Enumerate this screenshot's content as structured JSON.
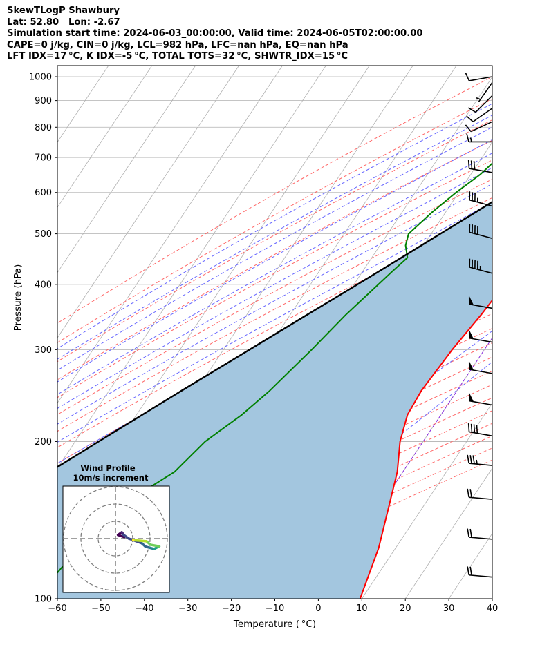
{
  "header": {
    "lines": [
      "SkewTLogP Shawbury",
      "Lat: 52.80   Lon: -2.67",
      "Simulation start time: 2024-06-03_00:00:00, Valid time: 2024-06-05T02:00:00.00",
      "CAPE=0 j/kg, CIN=0 j/kg, LCL=982 hPa, LFC=nan hPa, EQ=nan hPa",
      "LFT IDX=17 °C, K IDX=-5 °C, TOTAL TOTS=32 °C, SHWTR_IDX=15 °C"
    ]
  },
  "chart_data": {
    "type": "line",
    "chart_kind": "skew-T log-P diagram",
    "xlabel": "Temperature ($^\\circ$C)",
    "ylabel": "Pressure (hPa)",
    "xlabel_text": "Temperature ( °C)",
    "xlim": [
      -60,
      40
    ],
    "ylim_hpa": [
      1050,
      100
    ],
    "y_scale": "log",
    "grid": true,
    "x_ticks": [
      "−60",
      "−50",
      "−40",
      "−30",
      "−20",
      "−10",
      "0",
      "10",
      "20",
      "30",
      "40"
    ],
    "y_ticks": [
      "100",
      "200",
      "300",
      "400",
      "500",
      "600",
      "700",
      "800",
      "900",
      "1000"
    ],
    "colors": {
      "temperature": "#ff0000",
      "dewpoint": "#008000",
      "parcel": "#000000",
      "shading": "#a3c6df",
      "dry_adiabats": "#ff6666",
      "moist_adiabats": "#6666ff",
      "mixing_lines": "#aaaaaa",
      "isotherm_zero": "#8a2be2"
    },
    "series": [
      {
        "id": "temperature",
        "pressure": [
          1000,
          990,
          975,
          950,
          925,
          900,
          875,
          850,
          825,
          800,
          775,
          750,
          700,
          650,
          600,
          550,
          500,
          475,
          450,
          425,
          400,
          350,
          300,
          250,
          225,
          200,
          175,
          150,
          125,
          100
        ],
        "values": [
          8.5,
          9.3,
          8.7,
          6.8,
          4.9,
          3.3,
          1.8,
          0.6,
          -0.5,
          -1.4,
          -1.3,
          -1.1,
          -0.9,
          -0.6,
          -0.4,
          -0.3,
          -1.1,
          -2.1,
          -3.4,
          -4.6,
          -5.4,
          -6.1,
          -7.4,
          -8.2,
          -7.7,
          -5.3,
          -1.3,
          2.1,
          6.1,
          9.6
        ]
      },
      {
        "id": "dewpoint",
        "pressure": [
          1000,
          990,
          975,
          950,
          925,
          900,
          850,
          800,
          750,
          700,
          650,
          600,
          550,
          500,
          475,
          450,
          425,
          400,
          350,
          300,
          250,
          225,
          200,
          175,
          150,
          125,
          100
        ],
        "values": [
          4.2,
          5.5,
          5.9,
          5.2,
          3.7,
          1.2,
          -4.9,
          -11.4,
          -21.4,
          -26.2,
          -27.8,
          -30.6,
          -33.1,
          -35.2,
          -34.1,
          -31.8,
          -33.1,
          -34.4,
          -37.2,
          -39.7,
          -43.1,
          -45.8,
          -50.1,
          -52.5,
          -60.0,
          -63.0,
          -65.0
        ]
      },
      {
        "id": "parcel",
        "pressure": [
          1000,
          982,
          950,
          900,
          850,
          800,
          750,
          700,
          650,
          600,
          550,
          500,
          450,
          400,
          350,
          300,
          250,
          200,
          150,
          100
        ],
        "values": [
          5.1,
          4.2,
          2.6,
          0.2,
          -2.4,
          -5.2,
          -8.2,
          -11.4,
          -14.9,
          -18.8,
          -23.1,
          -27.9,
          -33.2,
          -39.2,
          -46.1,
          -54.0,
          -63.4,
          -74.6,
          -88.9,
          -109.8
        ]
      }
    ],
    "wind_barbs": {
      "pressure": [
        110,
        130,
        155,
        180,
        205,
        235,
        270,
        310,
        360,
        420,
        490,
        565,
        655,
        750,
        820,
        870,
        920,
        975,
        1000
      ],
      "speed_kt": [
        20,
        20,
        20,
        35,
        40,
        50,
        50,
        50,
        50,
        45,
        40,
        35,
        30,
        15,
        10,
        10,
        10,
        5,
        10
      ],
      "direction_deg": [
        275,
        275,
        275,
        275,
        280,
        280,
        280,
        280,
        280,
        285,
        285,
        285,
        280,
        270,
        245,
        235,
        225,
        215,
        260
      ]
    },
    "inset": {
      "title": "Wind Profile",
      "subtitle": "10m/s increment",
      "rings_ms": [
        10,
        20,
        30
      ]
    }
  }
}
